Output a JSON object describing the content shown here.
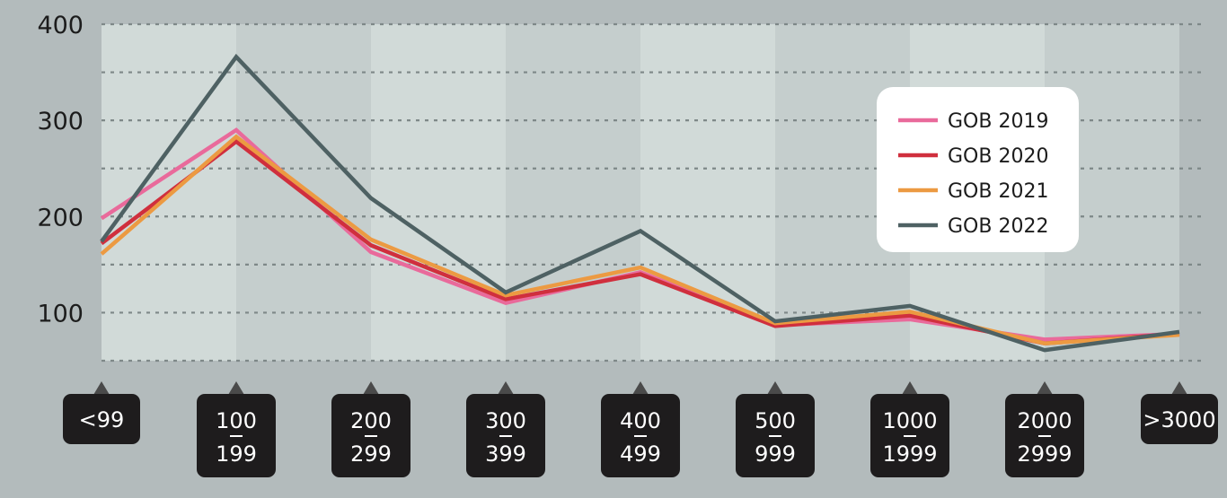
{
  "chart_data": {
    "type": "line",
    "title": "",
    "xlabel": "",
    "ylabel": "",
    "categories": [
      [
        "<99"
      ],
      [
        "100",
        "199"
      ],
      [
        "200",
        "299"
      ],
      [
        "300",
        "399"
      ],
      [
        "400",
        "499"
      ],
      [
        "500",
        "999"
      ],
      [
        "1000",
        "1999"
      ],
      [
        "2000",
        "2999"
      ],
      [
        ">3000"
      ]
    ],
    "y_ticks": [
      "100",
      "200",
      "300",
      "400"
    ],
    "ylim": [
      50,
      400
    ],
    "grid": true,
    "legend_position": "top-right",
    "series": [
      {
        "name": "GOB 2019",
        "color": "#e96a9b",
        "values": [
          198,
          290,
          163,
          110,
          142,
          87,
          93,
          72,
          78
        ]
      },
      {
        "name": "GOB 2020",
        "color": "#d02f3d",
        "values": [
          172,
          278,
          170,
          114,
          140,
          86,
          97,
          68,
          78
        ]
      },
      {
        "name": "GOB 2021",
        "color": "#ec9a42",
        "values": [
          161,
          283,
          176,
          118,
          147,
          89,
          101,
          68,
          77
        ]
      },
      {
        "name": "GOB 2022",
        "color": "#4e6163",
        "values": [
          174,
          366,
          219,
          121,
          185,
          91,
          107,
          61,
          80
        ]
      }
    ]
  }
}
